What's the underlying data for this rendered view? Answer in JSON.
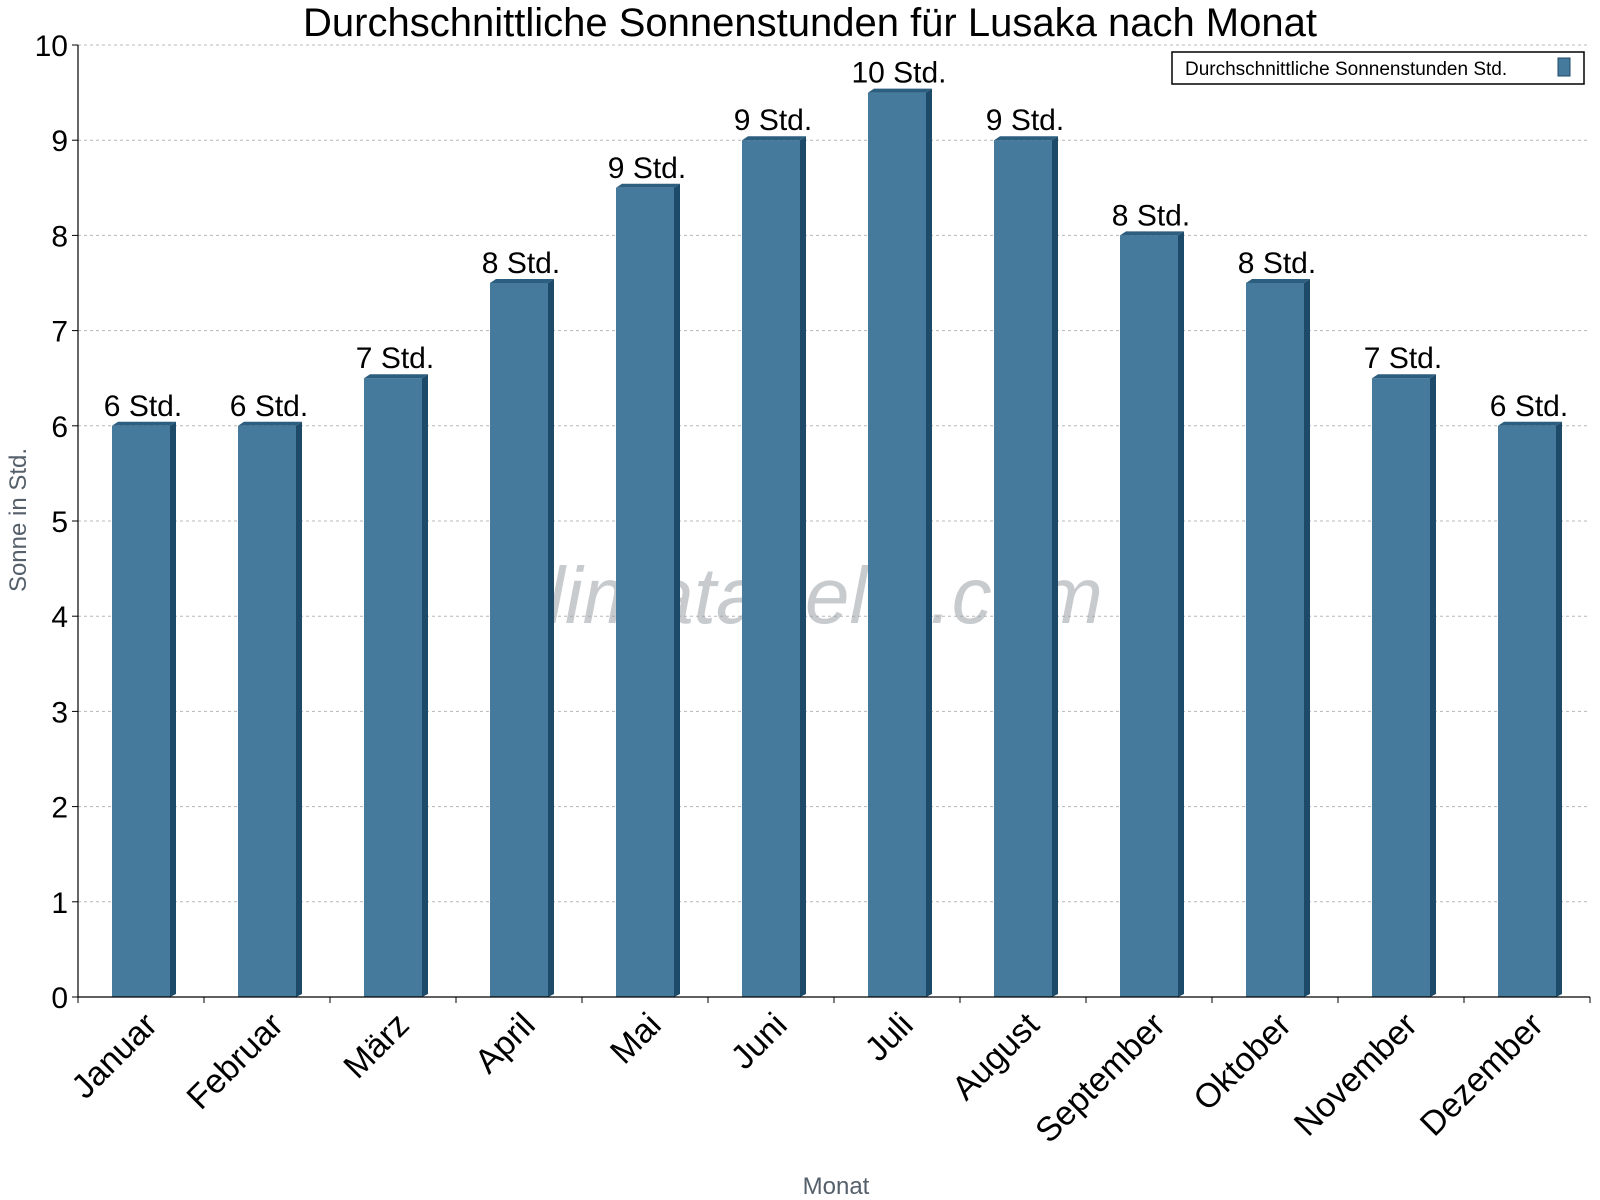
{
  "chart_data": {
    "type": "bar",
    "title": "Durchschnittliche Sonnenstunden für Lusaka nach Monat",
    "xlabel": "Monat",
    "ylabel": "Sonne in Std.",
    "ylim": [
      0,
      10
    ],
    "yticks": [
      "0",
      "1",
      "2",
      "3",
      "4",
      "5",
      "6",
      "7",
      "8",
      "9",
      "10"
    ],
    "grid": true,
    "legend_position": "top-right",
    "categories": [
      "Januar",
      "Februar",
      "März",
      "April",
      "Mai",
      "Juni",
      "Juli",
      "August",
      "September",
      "Oktober",
      "November",
      "Dezember"
    ],
    "series": [
      {
        "name": "Durchschnittliche Sonnenstunden Std.",
        "color": "#467a9c",
        "values": [
          6,
          6,
          6.5,
          7.5,
          8.5,
          9,
          9.5,
          9,
          8,
          7.5,
          6.5,
          6
        ],
        "data_labels": [
          "6 Std.",
          "6 Std.",
          "7 Std.",
          "8 Std.",
          "9 Std.",
          "9 Std.",
          "10 Std.",
          "9 Std.",
          "8 Std.",
          "8 Std.",
          "7 Std.",
          "6 Std."
        ]
      }
    ]
  },
  "watermark": "klimatabelle.com"
}
